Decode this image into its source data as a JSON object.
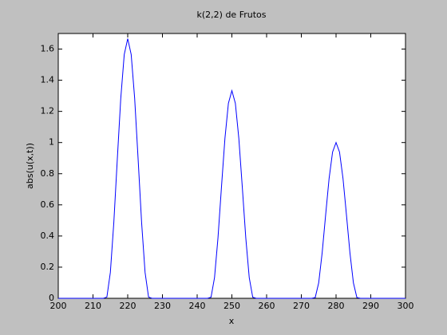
{
  "chart_data": {
    "type": "line",
    "title": "k(2,2) de Frutos",
    "x_label": "x",
    "y_label": "abs(u(x,t))",
    "x": [
      200,
      213,
      214,
      215,
      216,
      217,
      218,
      219,
      220,
      221,
      222,
      223,
      224,
      225,
      226,
      227,
      243,
      244,
      245,
      246,
      247,
      248,
      249,
      250,
      251,
      252,
      253,
      254,
      255,
      256,
      257,
      273,
      274,
      275,
      276,
      277,
      278,
      279,
      280,
      281,
      282,
      283,
      284,
      285,
      286,
      287,
      300
    ],
    "series": [
      {
        "color": "#0000ff",
        "values": [
          0,
          0,
          0.008,
          0.166,
          0.487,
          0.892,
          1.284,
          1.565,
          1.667,
          1.565,
          1.284,
          0.892,
          0.487,
          0.166,
          0.008,
          0,
          0,
          0.007,
          0.133,
          0.389,
          0.714,
          1.027,
          1.252,
          1.333,
          1.252,
          1.027,
          0.714,
          0.389,
          0.133,
          0.007,
          0,
          0,
          0.005,
          0.099,
          0.292,
          0.535,
          0.77,
          0.939,
          1,
          0.939,
          0.77,
          0.535,
          0.292,
          0.099,
          0.005,
          0,
          0
        ]
      }
    ],
    "xlim": [
      200,
      300
    ],
    "xticks": [
      200,
      210,
      220,
      230,
      240,
      250,
      260,
      270,
      280,
      290,
      300
    ],
    "ylim": [
      0,
      1.7
    ],
    "yticks": [
      0,
      0.2,
      0.4,
      0.6,
      0.8,
      1,
      1.2,
      1.4,
      1.6
    ],
    "grid": false
  }
}
